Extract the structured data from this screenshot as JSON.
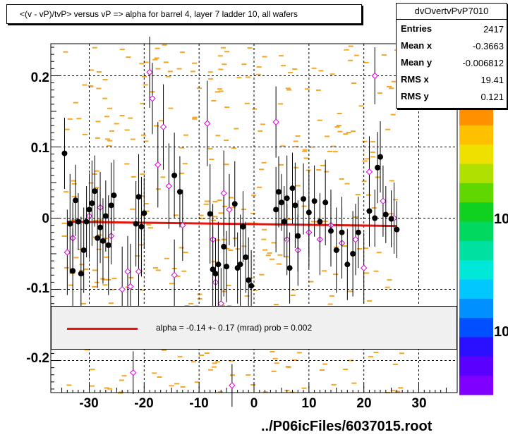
{
  "title": "<(v - vP)/tvP> versus   vP => alpha for barrel 4, layer 7 ladder 10, all wafers",
  "stats": {
    "name": "dvOvertvPvP7010",
    "rows": [
      {
        "label": "Entries",
        "value": "2417"
      },
      {
        "label": "Mean x",
        "value": "-0.3663"
      },
      {
        "label": "Mean y",
        "value": "-0.006812"
      },
      {
        "label": "RMS x",
        "value": "19.41"
      },
      {
        "label": "RMS y",
        "value": "0.121"
      }
    ]
  },
  "fit_text": "alpha =   -0.14 +-  0.17 (mrad) prob = 0.002",
  "footer": "../P06icFiles/6037015.root",
  "colorbar_labels": [
    "10",
    "10"
  ],
  "colors": {
    "fit_line": "#e8140c",
    "black_points": "#000000",
    "magenta_points": "#e000e0",
    "background_cells": "#f5a623",
    "grid": "#000000"
  },
  "chart_data": {
    "type": "scatter",
    "xlim": [
      -37,
      37
    ],
    "ylim": [
      -0.245,
      0.245
    ],
    "x_ticks": [
      -30,
      -20,
      -10,
      0,
      10,
      20,
      30
    ],
    "x_tick_labels": [
      "-30",
      "-20",
      "-10",
      "0",
      "10",
      "20",
      "30"
    ],
    "y_ticks": [
      -0.2,
      -0.1,
      0,
      0.1,
      0.2
    ],
    "y_tick_labels": [
      "-0.2",
      "-0.1",
      "0",
      "0.1",
      "0.2"
    ],
    "grid": true,
    "fit_line": {
      "x": [
        -34,
        26
      ],
      "y": [
        -0.005,
        -0.011
      ]
    },
    "black_points": [
      {
        "x": -34.5,
        "y": 0.091,
        "e": 0.05
      },
      {
        "x": -33.5,
        "y": -0.008,
        "e": 0.07
      },
      {
        "x": -33.0,
        "y": -0.074,
        "e": 0.06
      },
      {
        "x": -32.5,
        "y": 0.025,
        "e": 0.05
      },
      {
        "x": -32.0,
        "y": -0.005,
        "e": 0.04
      },
      {
        "x": -31.5,
        "y": -0.078,
        "e": 0.08
      },
      {
        "x": -31.0,
        "y": -0.045,
        "e": 0.06
      },
      {
        "x": -30.5,
        "y": -0.005,
        "e": 0.05
      },
      {
        "x": -30.0,
        "y": 0.012,
        "e": 0.04
      },
      {
        "x": -29.5,
        "y": 0.021,
        "e": 0.06
      },
      {
        "x": -29.0,
        "y": 0.038,
        "e": 0.05
      },
      {
        "x": -28.5,
        "y": -0.028,
        "e": 0.07
      },
      {
        "x": -28.0,
        "y": -0.013,
        "e": 0.05
      },
      {
        "x": -27.5,
        "y": -0.032,
        "e": 0.06
      },
      {
        "x": -27.0,
        "y": 0.003,
        "e": 0.05
      },
      {
        "x": -26.5,
        "y": -0.038,
        "e": 0.07
      },
      {
        "x": -26.0,
        "y": 0.018,
        "e": 0.06
      },
      {
        "x": -25.5,
        "y": 0.032,
        "e": 0.05
      },
      {
        "x": -21.5,
        "y": -0.008,
        "e": 0.06
      },
      {
        "x": -21.0,
        "y": 0.03,
        "e": 0.06
      },
      {
        "x": -20.5,
        "y": -0.012,
        "e": 0.07
      },
      {
        "x": -20.0,
        "y": 0.007,
        "e": 0.05
      },
      {
        "x": -14.5,
        "y": 0.06,
        "e": 0.06
      },
      {
        "x": -13.5,
        "y": 0.037,
        "e": 0.05
      },
      {
        "x": -8.0,
        "y": 0.006,
        "e": 0.07
      },
      {
        "x": -7.5,
        "y": -0.072,
        "e": 0.06
      },
      {
        "x": -7.0,
        "y": -0.078,
        "e": 0.05
      },
      {
        "x": -6.5,
        "y": -0.065,
        "e": 0.06
      },
      {
        "x": -5.5,
        "y": -0.04,
        "e": 0.07
      },
      {
        "x": -5.0,
        "y": -0.068,
        "e": 0.05
      },
      {
        "x": -3.5,
        "y": 0.02,
        "e": 0.06
      },
      {
        "x": -3.0,
        "y": -0.07,
        "e": 0.05
      },
      {
        "x": -2.5,
        "y": -0.065,
        "e": 0.07
      },
      {
        "x": -2.0,
        "y": -0.012,
        "e": 0.05
      },
      {
        "x": -1.5,
        "y": -0.055,
        "e": 0.05
      },
      {
        "x": -1.0,
        "y": -0.087,
        "e": 0.06
      },
      {
        "x": -0.5,
        "y": -0.095,
        "e": 0.05
      },
      {
        "x": 4.0,
        "y": 0.012,
        "e": 0.06
      },
      {
        "x": 4.5,
        "y": 0.037,
        "e": 0.05
      },
      {
        "x": 5.0,
        "y": 0.022,
        "e": 0.04
      },
      {
        "x": 5.5,
        "y": -0.005,
        "e": 0.05
      },
      {
        "x": 6.0,
        "y": 0.028,
        "e": 0.06
      },
      {
        "x": 6.5,
        "y": -0.07,
        "e": 0.05
      },
      {
        "x": 7.0,
        "y": 0.042,
        "e": 0.05
      },
      {
        "x": 7.5,
        "y": 0.018,
        "e": 0.06
      },
      {
        "x": 8.0,
        "y": -0.025,
        "e": 0.05
      },
      {
        "x": 9.0,
        "y": 0.027,
        "e": 0.05
      },
      {
        "x": 10.0,
        "y": 0.008,
        "e": 0.06
      },
      {
        "x": 11.0,
        "y": 0.024,
        "e": 0.05
      },
      {
        "x": 12.0,
        "y": -0.005,
        "e": 0.04
      },
      {
        "x": 13.0,
        "y": 0.022,
        "e": 0.06
      },
      {
        "x": 14.0,
        "y": -0.018,
        "e": 0.05
      },
      {
        "x": 15.0,
        "y": -0.045,
        "e": 0.06
      },
      {
        "x": 16.0,
        "y": -0.02,
        "e": 0.05
      },
      {
        "x": 17.0,
        "y": -0.065,
        "e": 0.05
      },
      {
        "x": 18.0,
        "y": -0.05,
        "e": 0.06
      },
      {
        "x": 19.0,
        "y": -0.02,
        "e": 0.05
      },
      {
        "x": 21.0,
        "y": 0.01,
        "e": 0.05
      },
      {
        "x": 22.0,
        "y": 0.0,
        "e": 0.04
      },
      {
        "x": 22.5,
        "y": 0.071,
        "e": 0.05
      },
      {
        "x": 23.0,
        "y": 0.086,
        "e": 0.05
      },
      {
        "x": 24.0,
        "y": 0.005,
        "e": 0.04
      },
      {
        "x": 25.0,
        "y": -0.001,
        "e": 0.04
      },
      {
        "x": 26.0,
        "y": -0.016,
        "e": 0.04
      }
    ],
    "magenta_points": [
      {
        "x": -34.0,
        "y": -0.048,
        "e": 0.06
      },
      {
        "x": -33.0,
        "y": -0.028,
        "e": 0.05
      },
      {
        "x": -30.0,
        "y": 0.003,
        "e": 0.06
      },
      {
        "x": -28.0,
        "y": 0.015,
        "e": 0.05
      },
      {
        "x": -26.0,
        "y": -0.025,
        "e": 0.04
      },
      {
        "x": -24.0,
        "y": -0.1,
        "e": 0.06
      },
      {
        "x": -23.0,
        "y": -0.075,
        "e": 0.05
      },
      {
        "x": -22.5,
        "y": -0.096,
        "e": 0.06
      },
      {
        "x": -21.0,
        "y": -0.075,
        "e": 0.06
      },
      {
        "x": -19.0,
        "y": 0.205,
        "e": 0.05
      },
      {
        "x": -18.5,
        "y": 0.168,
        "e": 0.05
      },
      {
        "x": -17.5,
        "y": 0.075,
        "e": 0.06
      },
      {
        "x": -16.5,
        "y": 0.128,
        "e": 0.06
      },
      {
        "x": -15.5,
        "y": 0.045,
        "e": 0.06
      },
      {
        "x": -14.5,
        "y": -0.08,
        "e": 0.05
      },
      {
        "x": -13.0,
        "y": -0.01,
        "e": 0.05
      },
      {
        "x": -8.5,
        "y": 0.133,
        "e": 0.06
      },
      {
        "x": -7.5,
        "y": -0.03,
        "e": 0.05
      },
      {
        "x": -7.0,
        "y": -0.09,
        "e": 0.06
      },
      {
        "x": -6.0,
        "y": -0.12,
        "e": 0.05
      },
      {
        "x": -5.5,
        "y": 0.035,
        "e": 0.06
      },
      {
        "x": -4.5,
        "y": 0.012,
        "e": 0.05
      },
      {
        "x": -4.0,
        "y": -0.235,
        "e": 0.03
      },
      {
        "x": -22.0,
        "y": -0.217,
        "e": 0.03
      },
      {
        "x": 4.0,
        "y": 0.135,
        "e": 0.05
      },
      {
        "x": 6.0,
        "y": -0.03,
        "e": 0.05
      },
      {
        "x": 8.0,
        "y": -0.045,
        "e": 0.05
      },
      {
        "x": 10.0,
        "y": -0.02,
        "e": 0.05
      },
      {
        "x": 12.0,
        "y": -0.03,
        "e": 0.05
      },
      {
        "x": 14.0,
        "y": -0.01,
        "e": 0.05
      },
      {
        "x": 16.0,
        "y": -0.035,
        "e": 0.05
      },
      {
        "x": 18.5,
        "y": -0.03,
        "e": 0.05
      },
      {
        "x": 20.0,
        "y": -0.07,
        "e": 0.05
      },
      {
        "x": 21.0,
        "y": 0.065,
        "e": 0.05
      },
      {
        "x": 22.0,
        "y": 0.2,
        "e": 0.04
      },
      {
        "x": 23.5,
        "y": 0.024,
        "e": 0.05
      },
      {
        "x": 25.5,
        "y": 0.0,
        "e": 0.05
      }
    ]
  }
}
